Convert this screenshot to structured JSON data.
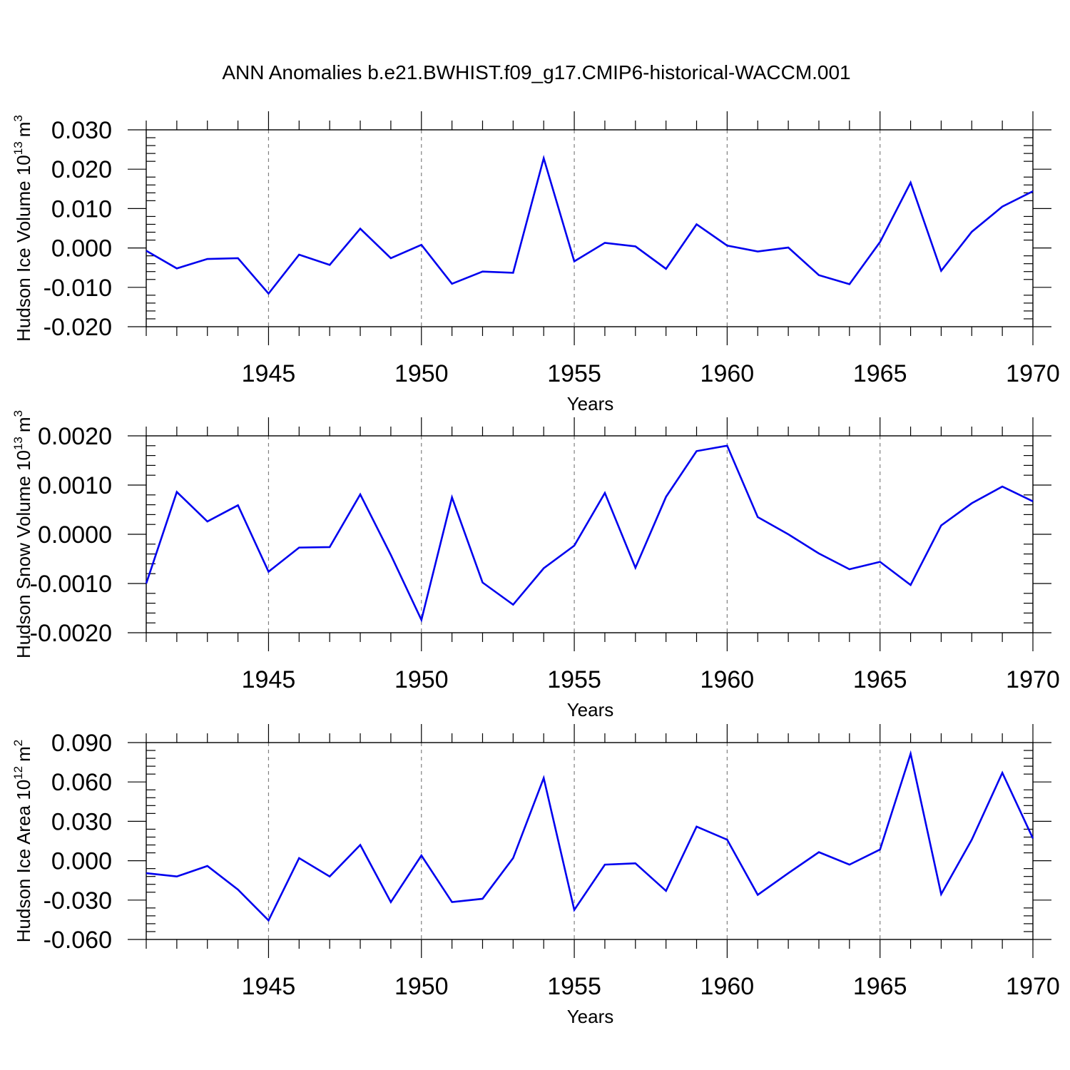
{
  "figure_title": "ANN Anomalies b.e21.BWHIST.f09_g17.CMIP6-historical-WACCM.001",
  "chart_data": [
    {
      "type": "line",
      "ylabel": "Hudson Ice Volume 10",
      "ylabel_sup": "13",
      "ylabel_unit": "m",
      "ylabel_unit_sup": "3",
      "xlabel": "Years",
      "xlim": [
        1941,
        1970
      ],
      "ylim": [
        -0.02,
        0.03
      ],
      "yticks": [
        -0.02,
        -0.01,
        0.0,
        0.01,
        0.02,
        0.03
      ],
      "ytick_labels": [
        "-0.020",
        "-0.010",
        "0.000",
        "0.010",
        "0.020",
        "0.030"
      ],
      "xticks": [
        1945,
        1950,
        1955,
        1960,
        1965,
        1970
      ],
      "xtick_labels": [
        "1945",
        "1950",
        "1955",
        "1960",
        "1965",
        "1970"
      ],
      "grid": "vertical dashed at major x ticks",
      "line_color": "#0000ee",
      "x": [
        1941,
        1942,
        1943,
        1944,
        1945,
        1946,
        1947,
        1948,
        1949,
        1950,
        1951,
        1952,
        1953,
        1954,
        1955,
        1956,
        1957,
        1958,
        1959,
        1960,
        1961,
        1962,
        1963,
        1964,
        1965,
        1966,
        1967,
        1968,
        1969,
        1970
      ],
      "y": [
        -0.0007,
        -0.0052,
        -0.0028,
        -0.0026,
        -0.0116,
        -0.0017,
        -0.0043,
        0.0049,
        -0.0026,
        0.0008,
        -0.0091,
        -0.006,
        -0.0063,
        0.0228,
        -0.0034,
        0.0013,
        0.0004,
        -0.0053,
        0.006,
        0.0006,
        -0.0009,
        0.0001,
        -0.0069,
        -0.0092,
        0.0015,
        0.0166,
        -0.0058,
        0.0041,
        0.0105,
        0.0144
      ]
    },
    {
      "type": "line",
      "ylabel": "Hudson Snow Volume 10",
      "ylabel_sup": "13",
      "ylabel_unit": "m",
      "ylabel_unit_sup": "3",
      "xlabel": "Years",
      "xlim": [
        1941,
        1970
      ],
      "ylim": [
        -0.002,
        0.002
      ],
      "yticks": [
        -0.002,
        -0.001,
        0.0,
        0.001,
        0.002
      ],
      "ytick_labels": [
        "-0.0020",
        "-0.0010",
        "0.0000",
        "0.0010",
        "0.0020"
      ],
      "xticks": [
        1945,
        1950,
        1955,
        1960,
        1965,
        1970
      ],
      "xtick_labels": [
        "1945",
        "1950",
        "1955",
        "1960",
        "1965",
        "1970"
      ],
      "grid": "vertical dashed at major x ticks",
      "line_color": "#0000ee",
      "x": [
        1941,
        1942,
        1943,
        1944,
        1945,
        1946,
        1947,
        1948,
        1949,
        1950,
        1951,
        1952,
        1953,
        1954,
        1955,
        1956,
        1957,
        1958,
        1959,
        1960,
        1961,
        1962,
        1963,
        1964,
        1965,
        1966,
        1967,
        1968,
        1969,
        1970
      ],
      "y": [
        -0.001,
        0.00086,
        0.00026,
        0.00059,
        -0.00076,
        -0.00027,
        -0.00026,
        0.00081,
        -0.00042,
        -0.00174,
        0.00075,
        -0.00098,
        -0.00143,
        -0.00069,
        -0.00023,
        0.00084,
        -0.00068,
        0.00076,
        0.00169,
        0.0018,
        0.00035,
        0.0,
        -0.00039,
        -0.00071,
        -0.00056,
        -0.00103,
        0.00018,
        0.00063,
        0.00097,
        0.00067
      ]
    },
    {
      "type": "line",
      "ylabel": "Hudson Ice Area 10",
      "ylabel_sup": "12",
      "ylabel_unit": "m",
      "ylabel_unit_sup": "2",
      "xlabel": "Years",
      "xlim": [
        1941,
        1970
      ],
      "ylim": [
        -0.06,
        0.09
      ],
      "yticks": [
        -0.06,
        -0.03,
        0.0,
        0.03,
        0.06,
        0.09
      ],
      "ytick_labels": [
        "-0.060",
        "-0.030",
        "0.000",
        "0.030",
        "0.060",
        "0.090"
      ],
      "xticks": [
        1945,
        1950,
        1955,
        1960,
        1965,
        1970
      ],
      "xtick_labels": [
        "1945",
        "1950",
        "1955",
        "1960",
        "1965",
        "1970"
      ],
      "grid": "vertical dashed at major x ticks",
      "line_color": "#0000ee",
      "x": [
        1941,
        1942,
        1943,
        1944,
        1945,
        1946,
        1947,
        1948,
        1949,
        1950,
        1951,
        1952,
        1953,
        1954,
        1955,
        1956,
        1957,
        1958,
        1959,
        1960,
        1961,
        1962,
        1963,
        1964,
        1965,
        1966,
        1967,
        1968,
        1969,
        1970
      ],
      "y": [
        -0.0095,
        -0.012,
        -0.004,
        -0.022,
        -0.0455,
        0.002,
        -0.012,
        0.012,
        -0.0315,
        0.004,
        -0.0315,
        -0.029,
        0.002,
        0.063,
        -0.0375,
        -0.003,
        -0.002,
        -0.023,
        0.026,
        0.016,
        -0.026,
        -0.0095,
        0.0065,
        -0.003,
        0.0085,
        0.0815,
        -0.0255,
        0.016,
        0.067,
        0.017
      ]
    }
  ]
}
